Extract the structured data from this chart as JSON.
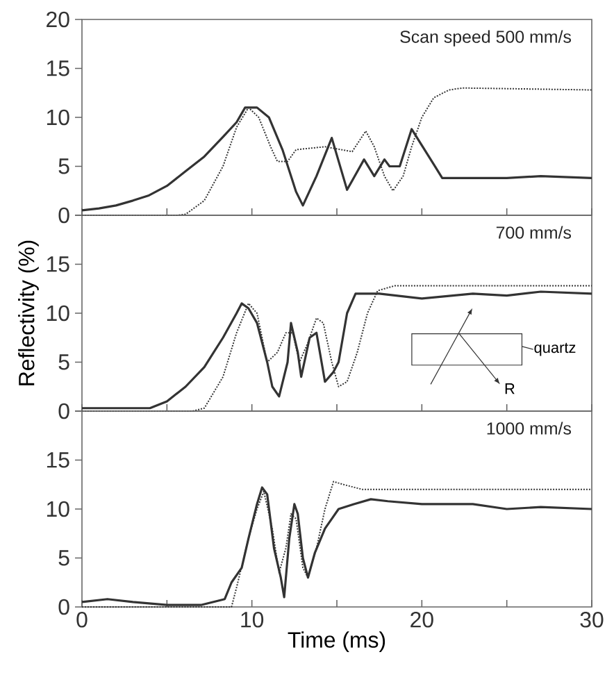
{
  "chart_data": [
    {
      "type": "line",
      "title": "Scan speed 500 mm/s",
      "xlim": [
        0,
        30
      ],
      "ylim": [
        0,
        20
      ],
      "xticks": [
        0,
        {
          "value": 5,
          "label": null
        },
        10,
        {
          "value": 15,
          "label": null
        },
        20,
        {
          "value": 25,
          "label": null
        },
        30
      ],
      "yticks": [
        0,
        5,
        10,
        15,
        20
      ],
      "tick_labels": "y",
      "series": [
        {
          "color": "#333333",
          "line_style": "solid",
          "x": [
            0,
            1,
            2,
            3,
            3.9,
            5,
            6.1,
            7.2,
            8.3,
            9.1,
            9.6,
            10.3,
            11,
            11.8,
            12.6,
            13,
            13.8,
            14.7,
            15.6,
            16.6,
            17.2,
            17.8,
            18.1,
            18.7,
            19.4,
            20.7,
            21.2,
            23,
            25,
            27,
            30
          ],
          "values": [
            0.5,
            0.7,
            1,
            1.5,
            2,
            3,
            4.5,
            6,
            8,
            9.5,
            11,
            11,
            10,
            6.7,
            2.4,
            1,
            4,
            7.9,
            2.6,
            5.7,
            4,
            5.7,
            5,
            5,
            8.8,
            5.2,
            3.8,
            3.8,
            3.8,
            4,
            3.8
          ]
        },
        {
          "color": "#333333",
          "line_style": "dotted",
          "x": [
            0,
            5.6,
            6.1,
            7.2,
            8.3,
            9.1,
            9.8,
            10.4,
            11.1,
            11.5,
            12.1,
            12.6,
            14.3,
            15.9,
            16.7,
            17.2,
            17.8,
            18.3,
            18.9,
            19.4,
            20,
            20.7,
            21.6,
            22.4,
            30
          ],
          "values": [
            0,
            0,
            0.1,
            1.5,
            5,
            9,
            11,
            10,
            7,
            5.5,
            5.5,
            6.7,
            7,
            6.5,
            8.6,
            7,
            4,
            2.5,
            4,
            7,
            10,
            12,
            12.8,
            13,
            12.8
          ]
        }
      ]
    },
    {
      "type": "line",
      "title": "700 mm/s",
      "ylabel": "Reflectivity (%)",
      "xlim": [
        0,
        30
      ],
      "ylim": [
        0,
        20
      ],
      "xticks": [
        0,
        {
          "value": 5,
          "label": null
        },
        10,
        {
          "value": 15,
          "label": null
        },
        20,
        {
          "value": 25,
          "label": null
        },
        30
      ],
      "yticks": [
        0,
        5,
        10,
        15,
        {
          "value": 20,
          "label": null
        }
      ],
      "tick_labels": "y",
      "annotations": [
        "quartz",
        "R"
      ],
      "series": [
        {
          "color": "#333333",
          "line_style": "solid",
          "x": [
            0,
            2,
            4,
            5,
            6.1,
            7.2,
            8.3,
            9.1,
            9.4,
            9.8,
            10.3,
            10.9,
            11.2,
            11.6,
            12.1,
            12.3,
            12.7,
            12.9,
            13.4,
            13.8,
            14.3,
            14.8,
            15.1,
            15.6,
            16.1,
            16.7,
            17.5,
            20,
            23,
            25,
            27,
            30
          ],
          "values": [
            0.3,
            0.3,
            0.3,
            1,
            2.5,
            4.5,
            7.5,
            10,
            11,
            10.5,
            9,
            5,
            2.5,
            1.5,
            5,
            9,
            6,
            3.5,
            7.5,
            8,
            3,
            4,
            5,
            10,
            12,
            12,
            12,
            11.5,
            12,
            11.8,
            12.2,
            12
          ]
        },
        {
          "color": "#333333",
          "line_style": "dotted",
          "x": [
            0,
            6.5,
            7.2,
            8.3,
            9.1,
            9.8,
            10.3,
            10.9,
            11.5,
            12,
            12.4,
            12.8,
            13.3,
            13.8,
            14.2,
            14.7,
            15.1,
            15.6,
            16.2,
            16.8,
            17.4,
            18.4,
            30
          ],
          "values": [
            0,
            0,
            0.3,
            3.5,
            8,
            11,
            10,
            5,
            6,
            8,
            8,
            5,
            7,
            9.5,
            9,
            5,
            2.5,
            3,
            6,
            10,
            12.3,
            12.8,
            12.8
          ]
        }
      ]
    },
    {
      "type": "line",
      "title": "1000 mm/s",
      "xlabel": "Time (ms)",
      "xlim": [
        0,
        30
      ],
      "ylim": [
        0,
        20
      ],
      "xticks": [
        0,
        {
          "value": 5,
          "label": null
        },
        10,
        {
          "value": 15,
          "label": null
        },
        20,
        {
          "value": 25,
          "label": null
        },
        30
      ],
      "yticks": [
        0,
        5,
        10,
        15,
        {
          "value": 20,
          "label": null
        }
      ],
      "series": [
        {
          "color": "#333333",
          "line_style": "solid",
          "x": [
            0,
            1.5,
            3,
            5,
            7,
            8.4,
            8.8,
            9.4,
            9.8,
            10.3,
            10.6,
            10.9,
            11.3,
            11.7,
            11.9,
            12.2,
            12.5,
            12.7,
            13,
            13.3,
            13.7,
            14.3,
            14.7,
            15.1,
            16,
            17,
            18,
            20,
            23,
            25,
            27,
            30
          ],
          "values": [
            0.5,
            0.8,
            0.5,
            0.2,
            0.2,
            0.8,
            2.5,
            4,
            7,
            10.5,
            12.2,
            11.5,
            6,
            3,
            1,
            7,
            10.5,
            9.5,
            5,
            3,
            5.5,
            8,
            9,
            10,
            10.5,
            11,
            10.8,
            10.5,
            10.5,
            10,
            10.2,
            10
          ]
        },
        {
          "color": "#333333",
          "line_style": "dotted",
          "x": [
            0,
            8.8,
            9.1,
            9.8,
            10.3,
            10.7,
            11.2,
            11.6,
            12,
            12.3,
            12.6,
            13,
            13.3,
            13.8,
            14.3,
            14.8,
            15.4,
            16.5,
            30
          ],
          "values": [
            0,
            0,
            2,
            7,
            10,
            11.8,
            8,
            3.5,
            6,
            9.5,
            9,
            4,
            3,
            6,
            10,
            12.8,
            12.5,
            12,
            12
          ]
        }
      ]
    }
  ]
}
